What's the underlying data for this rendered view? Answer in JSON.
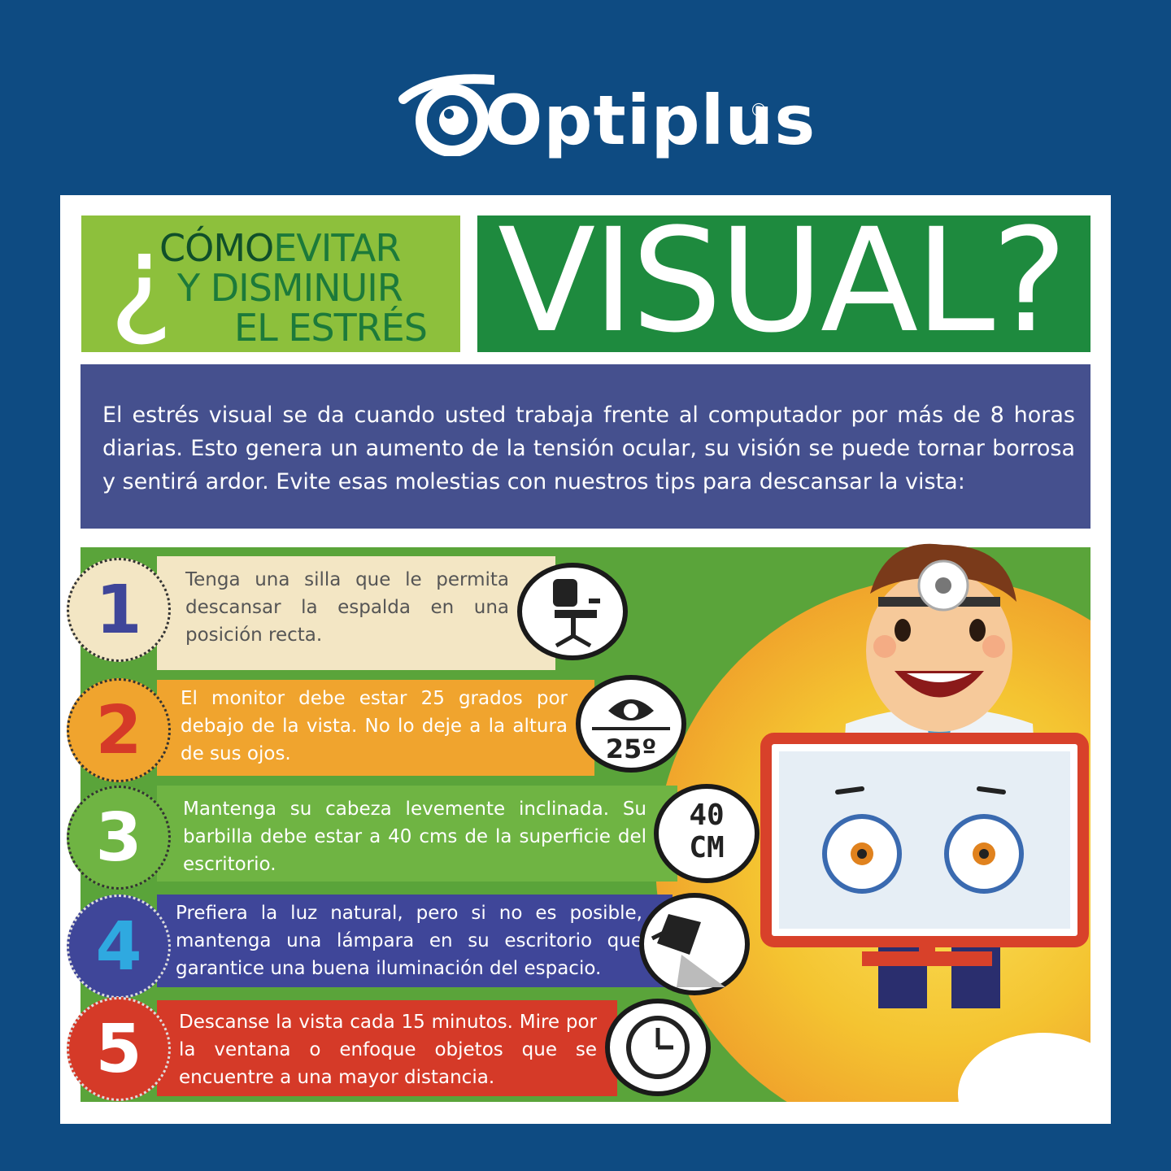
{
  "brand": {
    "name": "Optiplus",
    "registered": "®"
  },
  "title": {
    "question_mark": "¿",
    "word_como": "CÓMO",
    "line1_rest": "EVITAR",
    "line2": "Y DISMINUIR",
    "line3": "EL ESTRÉS",
    "big": "VISUAL?"
  },
  "intro": "El estrés visual se da cuando usted trabaja frente al computador por más de 8 horas diarias. Esto genera un aumento de la tensión ocular, su visión se puede tornar borrosa y sentirá ardor. Evite esas molestias con nuestros tips para descansar la vista:",
  "tips": [
    {
      "number": "1",
      "text": "Tenga una silla que le permita descansar la espalda en una posición recta.",
      "icon": "chair-icon"
    },
    {
      "number": "2",
      "text": "El monitor debe estar 25 grados por debajo de la vista. No lo deje a la altura de sus ojos.",
      "icon": "eye-angle-icon",
      "icon_label": "25º"
    },
    {
      "number": "3",
      "text": "Mantenga su cabeza levemente inclinada. Su barbilla debe estar a 40 cms de la superficie del escritorio.",
      "icon": "distance-icon",
      "icon_label_top": "40",
      "icon_label_bottom": "CM"
    },
    {
      "number": "4",
      "text": "Prefiera la luz natural, pero si no es posible, mantenga una lámpara en su escritorio que garantice una buena iluminación del espacio.",
      "icon": "lamp-icon"
    },
    {
      "number": "5",
      "text": "Descanse la vista cada 15 minutos. Mire por la ventana o enfoque objetos que se encuentre a una mayor distancia.",
      "icon": "clock-icon"
    }
  ],
  "colors": {
    "background": "#0e4b82",
    "light_green": "#8dc03c",
    "dark_green": "#1e8a3e",
    "intro_purple": "#45508e",
    "tip1": "#f3e6c4",
    "tip2": "#f0a42e",
    "tip3": "#6fb443",
    "tip4": "#3f4699",
    "tip5": "#d53a28"
  }
}
